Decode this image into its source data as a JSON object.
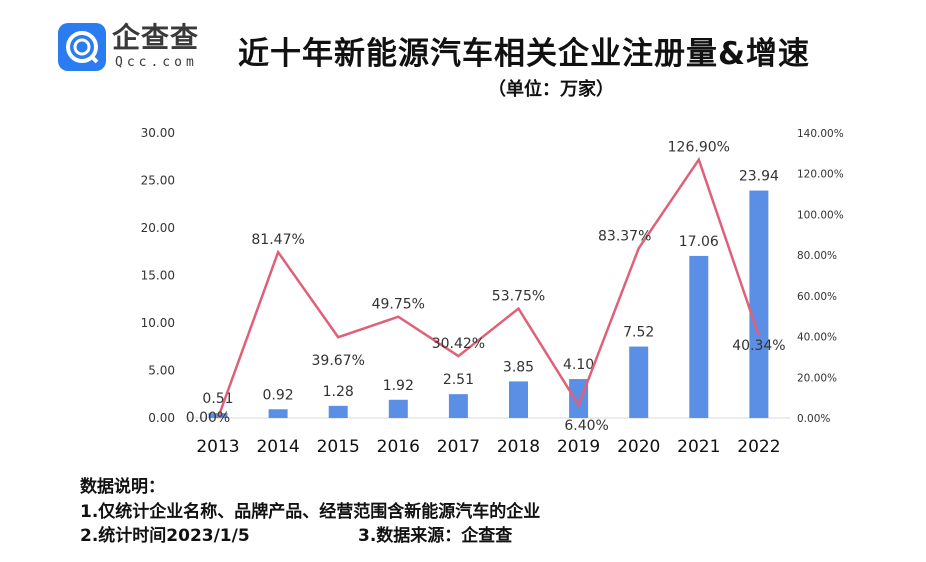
{
  "logo": {
    "brand": "企查查",
    "domain": "Qcc.com",
    "color": "#2b7cf0"
  },
  "title": "近十年新能源汽车相关企业注册量&增速",
  "unit": "（单位：万家）",
  "chart_data": {
    "type": "bar+line",
    "categories": [
      "2013",
      "2014",
      "2015",
      "2016",
      "2017",
      "2018",
      "2019",
      "2020",
      "2021",
      "2022"
    ],
    "series": [
      {
        "type": "bar",
        "axis": "left",
        "color": "#5b8fe6",
        "values": [
          0.51,
          0.92,
          1.28,
          1.92,
          2.51,
          3.85,
          4.1,
          7.52,
          17.06,
          23.94
        ],
        "labels": [
          "0.51",
          "0.92",
          "1.28",
          "1.92",
          "2.51",
          "3.85",
          "4.10",
          "7.52",
          "17.06",
          "23.94"
        ]
      },
      {
        "type": "line",
        "axis": "right",
        "color": "#e0607a",
        "values": [
          0.0,
          81.47,
          39.67,
          49.75,
          30.42,
          53.75,
          6.4,
          83.37,
          126.9,
          40.34
        ],
        "labels": [
          "0.00%",
          "81.47%",
          "39.67%",
          "49.75%",
          "30.42%",
          "53.75%",
          "6.40%",
          "83.37%",
          "126.90%",
          "40.34%"
        ]
      }
    ],
    "left_axis": {
      "ylim": [
        0,
        30
      ],
      "ticks": [
        "0.00",
        "5.00",
        "10.00",
        "15.00",
        "20.00",
        "25.00",
        "30.00"
      ]
    },
    "right_axis": {
      "ylim": [
        0,
        140
      ],
      "ticks": [
        "0.00%",
        "20.00%",
        "40.00%",
        "60.00%",
        "80.00%",
        "100.00%",
        "120.00%",
        "140.00%"
      ]
    },
    "grid": false
  },
  "notes": {
    "heading": "数据说明：",
    "line1": "1.仅统计企业名称、品牌产品、经营范围含新能源汽车的企业",
    "line2a": "2.统计时间2023/1/5",
    "line2b": "3.数据来源：企查查"
  }
}
